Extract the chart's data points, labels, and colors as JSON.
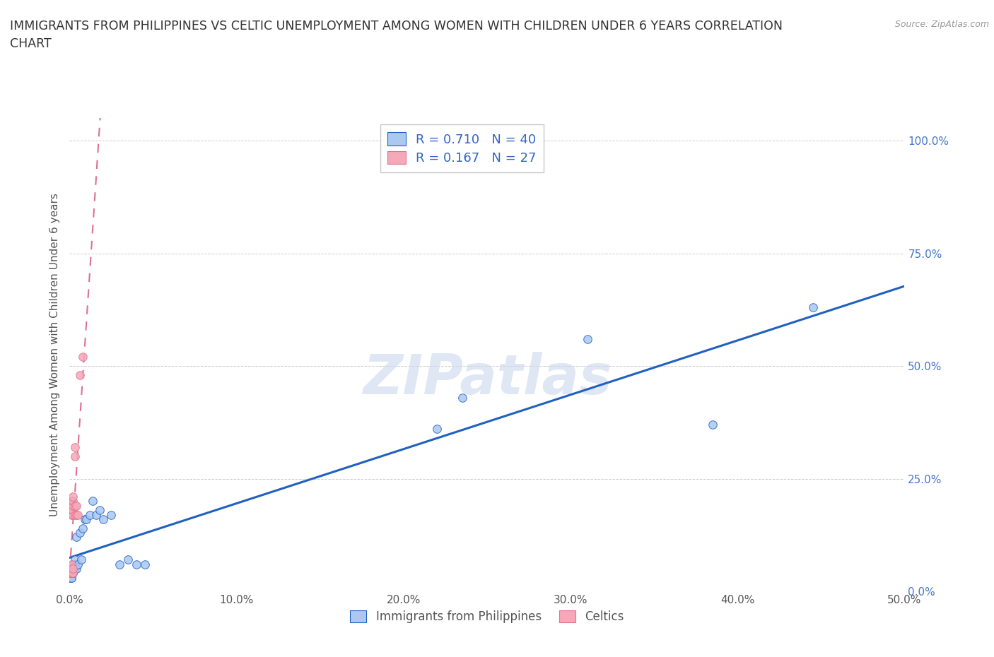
{
  "title": "IMMIGRANTS FROM PHILIPPINES VS CELTIC UNEMPLOYMENT AMONG WOMEN WITH CHILDREN UNDER 6 YEARS CORRELATION\nCHART",
  "source": "Source: ZipAtlas.com",
  "ylabel": "Unemployment Among Women with Children Under 6 years",
  "xlabel_legend1": "Immigrants from Philippines",
  "xlabel_legend2": "Celtics",
  "xlim": [
    0.0,
    0.5
  ],
  "ylim": [
    0.0,
    1.05
  ],
  "yticks": [
    0.0,
    0.25,
    0.5,
    0.75,
    1.0
  ],
  "ytick_labels": [
    "0.0%",
    "25.0%",
    "50.0%",
    "75.0%",
    "100.0%"
  ],
  "xticks": [
    0.0,
    0.1,
    0.2,
    0.3,
    0.4,
    0.5
  ],
  "xtick_labels": [
    "0.0%",
    "10.0%",
    "20.0%",
    "30.0%",
    "40.0%",
    "50.0%"
  ],
  "R_blue": 0.71,
  "N_blue": 40,
  "R_pink": 0.167,
  "N_pink": 27,
  "color_blue": "#aac8f0",
  "color_pink": "#f5a8b8",
  "line_blue": "#2060c0",
  "line_pink": "#e07090",
  "watermark": "ZIPatlas",
  "blue_x": [
    0.0,
    0.0,
    0.001,
    0.001,
    0.001,
    0.001,
    0.001,
    0.001,
    0.001,
    0.002,
    0.002,
    0.002,
    0.002,
    0.002,
    0.003,
    0.003,
    0.003,
    0.004,
    0.004,
    0.005,
    0.006,
    0.007,
    0.008,
    0.009,
    0.01,
    0.012,
    0.014,
    0.016,
    0.018,
    0.02,
    0.025,
    0.03,
    0.035,
    0.04,
    0.045,
    0.22,
    0.235,
    0.31,
    0.385,
    0.445
  ],
  "blue_y": [
    0.03,
    0.04,
    0.03,
    0.04,
    0.03,
    0.04,
    0.05,
    0.04,
    0.05,
    0.04,
    0.05,
    0.04,
    0.05,
    0.06,
    0.05,
    0.06,
    0.07,
    0.05,
    0.12,
    0.06,
    0.13,
    0.07,
    0.14,
    0.16,
    0.16,
    0.17,
    0.2,
    0.17,
    0.18,
    0.16,
    0.17,
    0.06,
    0.07,
    0.06,
    0.06,
    0.36,
    0.43,
    0.56,
    0.37,
    0.63
  ],
  "pink_x": [
    0.0,
    0.0,
    0.0,
    0.001,
    0.001,
    0.001,
    0.001,
    0.001,
    0.001,
    0.001,
    0.001,
    0.002,
    0.002,
    0.002,
    0.002,
    0.002,
    0.002,
    0.002,
    0.003,
    0.003,
    0.003,
    0.003,
    0.004,
    0.004,
    0.005,
    0.006,
    0.008
  ],
  "pink_y": [
    0.04,
    0.04,
    0.05,
    0.04,
    0.04,
    0.05,
    0.05,
    0.06,
    0.17,
    0.19,
    0.2,
    0.04,
    0.05,
    0.17,
    0.18,
    0.19,
    0.2,
    0.21,
    0.17,
    0.19,
    0.3,
    0.32,
    0.17,
    0.19,
    0.17,
    0.48,
    0.52
  ]
}
